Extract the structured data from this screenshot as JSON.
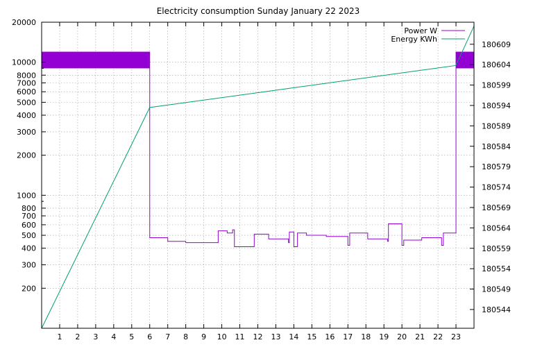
{
  "chart_data": {
    "type": "line",
    "title": "Electricity consumption Sunday January 22 2023",
    "xlabel": "",
    "ylabel": "",
    "y2label": "",
    "grid": true,
    "legend_position": "top-right",
    "x_range": [
      0,
      24
    ],
    "x_ticks": [
      1,
      2,
      3,
      4,
      5,
      6,
      7,
      8,
      9,
      10,
      11,
      12,
      13,
      14,
      15,
      16,
      17,
      18,
      19,
      20,
      21,
      22,
      23
    ],
    "y_axis": {
      "scale": "log",
      "range": [
        100,
        20000
      ],
      "tick_labels": [
        "20000",
        "10000",
        "8000",
        "7000",
        "6000",
        "5000",
        "4000",
        "3000",
        "2000",
        "1000",
        "800",
        "700",
        "600",
        "500",
        "400",
        "300",
        "200"
      ],
      "tick_values": [
        20000,
        10000,
        8000,
        7000,
        6000,
        5000,
        4000,
        3000,
        2000,
        1000,
        800,
        700,
        600,
        500,
        400,
        300,
        200
      ],
      "minor_ticks": [
        900,
        90000
      ]
    },
    "y2_axis": {
      "scale": "linear",
      "range": [
        180539.4,
        180614.4
      ],
      "tick_values": [
        180609,
        180604,
        180599,
        180594,
        180589,
        180584,
        180579,
        180574,
        180569,
        180564,
        180559,
        180554,
        180549,
        180544
      ],
      "tick_labels": [
        "180609",
        "180604",
        "180599",
        "180594",
        "180589",
        "180584",
        "180579",
        "180574",
        "180569",
        "180564",
        "180559",
        "180554",
        "180549",
        "180544"
      ]
    },
    "series": [
      {
        "name": "Power W",
        "axis": "y",
        "color": "#9400D3",
        "high_band": [
          {
            "x": [
              0,
              6
            ],
            "y_low": 9000,
            "y_high": 12000
          },
          {
            "x": [
              23,
              24
            ],
            "y_low": 9000,
            "y_high": 12000
          }
        ],
        "points": [
          [
            6,
            12000
          ],
          [
            6,
            480
          ],
          [
            7,
            480
          ],
          [
            7,
            450
          ],
          [
            8,
            450
          ],
          [
            8,
            440
          ],
          [
            9.8,
            440
          ],
          [
            9.8,
            540
          ],
          [
            10.3,
            540
          ],
          [
            10.3,
            520
          ],
          [
            10.6,
            520
          ],
          [
            10.6,
            550
          ],
          [
            10.7,
            550
          ],
          [
            10.7,
            410
          ],
          [
            11.8,
            410
          ],
          [
            11.8,
            510
          ],
          [
            12.6,
            510
          ],
          [
            12.6,
            470
          ],
          [
            13.7,
            470
          ],
          [
            13.7,
            440
          ],
          [
            13.75,
            440
          ],
          [
            13.75,
            530
          ],
          [
            14,
            530
          ],
          [
            14,
            410
          ],
          [
            14.2,
            410
          ],
          [
            14.2,
            520
          ],
          [
            14.7,
            520
          ],
          [
            14.7,
            500
          ],
          [
            15.8,
            500
          ],
          [
            15.8,
            490
          ],
          [
            17,
            490
          ],
          [
            17,
            420
          ],
          [
            17.1,
            420
          ],
          [
            17.1,
            520
          ],
          [
            18.1,
            520
          ],
          [
            18.1,
            470
          ],
          [
            19.2,
            470
          ],
          [
            19.2,
            450
          ],
          [
            19.25,
            450
          ],
          [
            19.25,
            610
          ],
          [
            20,
            610
          ],
          [
            20,
            420
          ],
          [
            20.1,
            420
          ],
          [
            20.1,
            460
          ],
          [
            21.1,
            460
          ],
          [
            21.1,
            480
          ],
          [
            22.2,
            480
          ],
          [
            22.2,
            420
          ],
          [
            22.3,
            420
          ],
          [
            22.3,
            520
          ],
          [
            23,
            520
          ],
          [
            23,
            12000
          ]
        ]
      },
      {
        "name": "Energy KWh",
        "axis": "y2",
        "color": "#009E73",
        "points": [
          [
            0,
            180539.4
          ],
          [
            6,
            180593.5
          ],
          [
            23,
            180603.8
          ],
          [
            24,
            180613.5
          ]
        ]
      }
    ]
  }
}
